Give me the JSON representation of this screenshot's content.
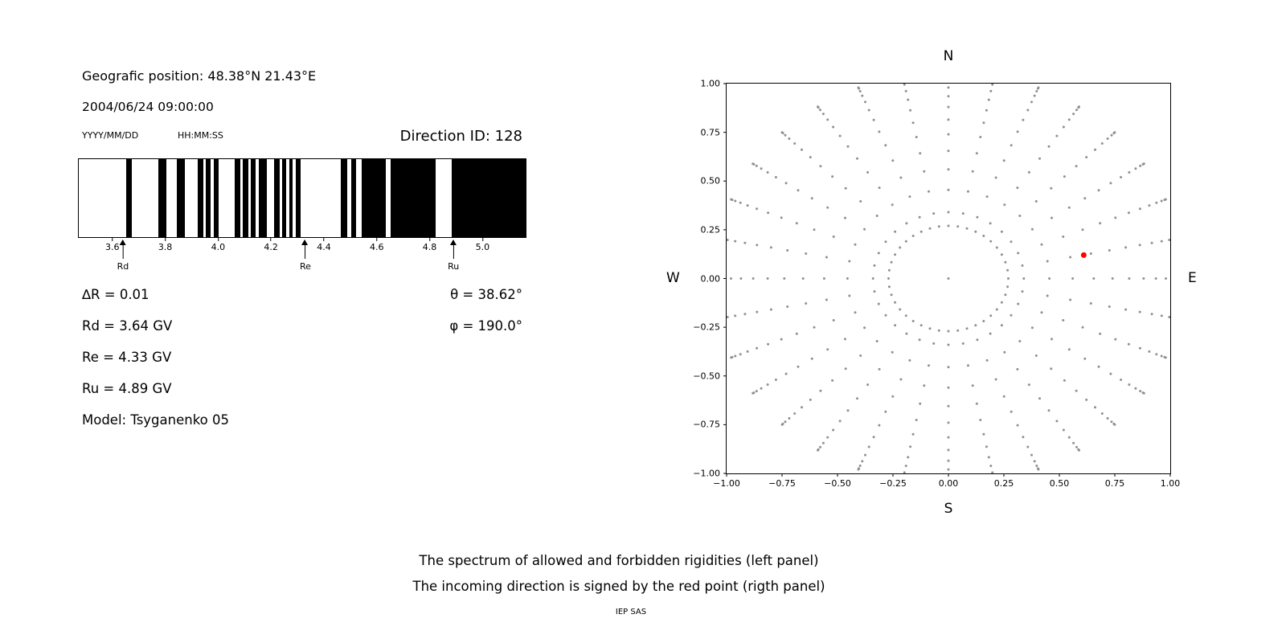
{
  "figure": {
    "background": "#ffffff"
  },
  "left_panel": {
    "geo_position": "Geografic position: 48.38°N 21.43°E",
    "datetime": "2004/06/24 09:00:00",
    "date_format_label": "YYYY/MM/DD",
    "time_format_label": "HH:MM:SS",
    "direction_id_label": "Direction ID: 128",
    "info_left": [
      "∆R = 0.01",
      "Rd = 3.64 GV",
      "Re = 4.33 GV",
      "Ru = 4.89 GV",
      "Model: Tsyganenko 05"
    ],
    "info_right": [
      "θ = 38.62°",
      "φ = 190.0°"
    ]
  },
  "caption": {
    "line1": "The spectrum of allowed and forbidden rigidities (left panel)",
    "line2": "The incoming direction is signed by the red point (rigth panel)",
    "credit": "IEP SAS"
  },
  "chart_data": [
    {
      "type": "bar",
      "name": "rigidity-spectrum",
      "title": "Spectrum of allowed (white) and forbidden (black) rigidities",
      "x_range": [
        3.47,
        5.16
      ],
      "x_ticks": [
        3.6,
        3.8,
        4.0,
        4.2,
        4.4,
        4.6,
        4.8,
        5.0
      ],
      "band_color": "#000000",
      "forbidden_bands_gv": [
        [
          3.65,
          3.67
        ],
        [
          3.77,
          3.8
        ],
        [
          3.84,
          3.87
        ],
        [
          3.92,
          3.94
        ],
        [
          3.95,
          3.97
        ],
        [
          3.98,
          4.0
        ],
        [
          4.06,
          4.08
        ],
        [
          4.09,
          4.11
        ],
        [
          4.12,
          4.14
        ],
        [
          4.15,
          4.18
        ],
        [
          4.21,
          4.23
        ],
        [
          4.24,
          4.255
        ],
        [
          4.265,
          4.28
        ],
        [
          4.29,
          4.31
        ],
        [
          4.46,
          4.485
        ],
        [
          4.5,
          4.52
        ],
        [
          4.54,
          4.63
        ],
        [
          4.65,
          4.82
        ],
        [
          4.88,
          5.16
        ]
      ],
      "markers": [
        {
          "label": "Rd",
          "value": 3.64
        },
        {
          "label": "Re",
          "value": 4.33
        },
        {
          "label": "Ru",
          "value": 4.89
        }
      ]
    },
    {
      "type": "scatter",
      "name": "incoming-direction",
      "xlim": [
        -1,
        1
      ],
      "ylim": [
        -1,
        1
      ],
      "x_ticks": [
        -1.0,
        -0.75,
        -0.5,
        -0.25,
        0.0,
        0.25,
        0.5,
        0.75,
        1.0
      ],
      "y_ticks": [
        -1.0,
        -0.75,
        -0.5,
        -0.25,
        0.0,
        0.25,
        0.5,
        0.75,
        1.0
      ],
      "x_tick_labels": [
        "−1.00",
        "−0.75",
        "−0.50",
        "−0.25",
        "0.00",
        "0.25",
        "0.50",
        "0.75",
        "1.00"
      ],
      "y_tick_labels": [
        "−1.00",
        "−0.75",
        "−0.50",
        "−0.25",
        "0.00",
        "0.25",
        "0.50",
        "0.75",
        "1.00"
      ],
      "compass": {
        "top": "N",
        "bottom": "S",
        "left": "W",
        "right": "E"
      },
      "dots": {
        "color": "#909090",
        "radius": 1.5,
        "spokes": 32,
        "dots_per_spoke": 13,
        "spoke_r_inner": 0.34,
        "spoke_r_outer": 1.06,
        "bunching_power": 2,
        "ring_radius": 0.27,
        "ring_dots": 40,
        "center_dot": true
      },
      "red_point": {
        "x": 0.61,
        "y": 0.12,
        "color": "#ff0000",
        "radius": 3.5
      }
    }
  ]
}
